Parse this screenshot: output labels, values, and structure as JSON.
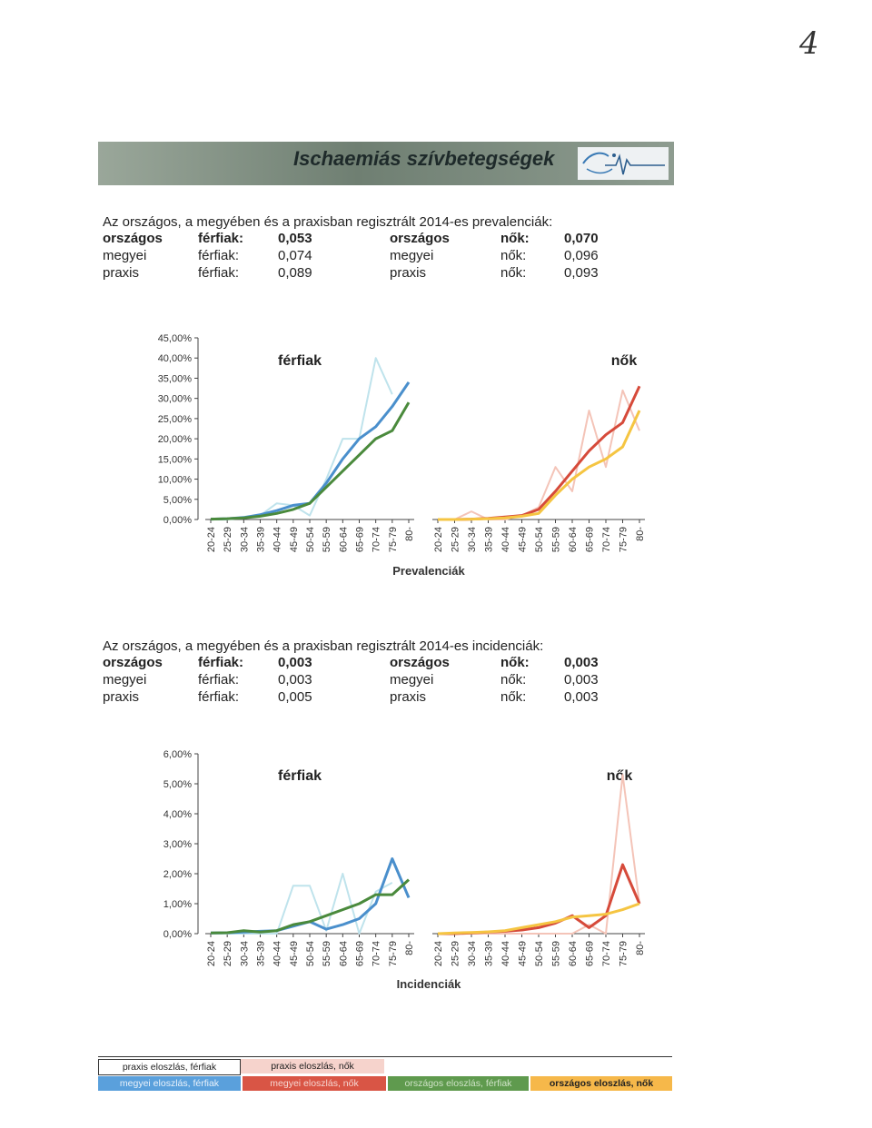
{
  "page_number": "4",
  "header": {
    "title": "Ischaemiás szívbetegségek",
    "logo_icon": "heart-pulse-logo-icon"
  },
  "prevalence": {
    "intro": "Az országos, a megyében és a praxisban regisztrált 2014-es prevalenciák:",
    "rows": [
      {
        "level": "országos",
        "men_label": "férfiak:",
        "men_value": "0,053",
        "level2": "országos",
        "women_label": "nők:",
        "women_value": "0,070",
        "bold": true
      },
      {
        "level": "megyei",
        "men_label": "férfiak:",
        "men_value": "0,074",
        "level2": "megyei",
        "women_label": "nők:",
        "women_value": "0,096",
        "bold": false
      },
      {
        "level": "praxis",
        "men_label": "férfiak:",
        "men_value": "0,089",
        "level2": "praxis",
        "women_label": "nők:",
        "women_value": "0,093",
        "bold": false
      }
    ]
  },
  "incidence": {
    "intro": "Az országos, a megyében és a praxisban regisztrált 2014-es incidenciák:",
    "rows": [
      {
        "level": "országos",
        "men_label": "férfiak:",
        "men_value": "0,003",
        "level2": "országos",
        "women_label": "nők:",
        "women_value": "0,003",
        "bold": true
      },
      {
        "level": "megyei",
        "men_label": "férfiak:",
        "men_value": "0,003",
        "level2": "megyei",
        "women_label": "nők:",
        "women_value": "0,003",
        "bold": false
      },
      {
        "level": "praxis",
        "men_label": "férfiak:",
        "men_value": "0,005",
        "level2": "praxis",
        "women_label": "nők:",
        "women_value": "0,003",
        "bold": false
      }
    ]
  },
  "chart_data": [
    {
      "type": "line",
      "title": "Prevalenciák",
      "panel_labels": [
        "férfiak",
        "nők"
      ],
      "categories": [
        "20-24",
        "25-29",
        "30-34",
        "35-39",
        "40-44",
        "45-49",
        "50-54",
        "55-59",
        "60-64",
        "65-69",
        "70-74",
        "75-79",
        "80-"
      ],
      "ylim": [
        0,
        45
      ],
      "yticks": [
        "0,00%",
        "5,00%",
        "10,00%",
        "15,00%",
        "20,00%",
        "25,00%",
        "30,00%",
        "35,00%",
        "40,00%",
        "45,00%"
      ],
      "panels": [
        {
          "name": "férfiak",
          "series": [
            {
              "name": "praxis eloszlás, férfiak",
              "color": "#bfe3ec",
              "values": [
                0,
                0,
                0.5,
                1,
                4,
                3.5,
                1,
                10,
                20,
                20,
                40,
                31,
                null
              ]
            },
            {
              "name": "megyei eloszlás, férfiak",
              "color": "#4a8fcc",
              "values": [
                0.1,
                0.2,
                0.5,
                1.2,
                2.2,
                3.5,
                4,
                9,
                15,
                20,
                23,
                28,
                34
              ]
            },
            {
              "name": "országos eloszlás, férfiak",
              "color": "#4a8a3c",
              "values": [
                0.1,
                0.2,
                0.4,
                0.8,
                1.5,
                2.5,
                4,
                8,
                12,
                16,
                20,
                22,
                29
              ]
            }
          ]
        },
        {
          "name": "nők",
          "series": [
            {
              "name": "praxis eloszlás, nők",
              "color": "#f4c4b8",
              "values": [
                0,
                0,
                2,
                0,
                0,
                1,
                3,
                13,
                7,
                27,
                13,
                32,
                22
              ]
            },
            {
              "name": "megyei eloszlás, nők",
              "color": "#d64a3a",
              "values": [
                0,
                0,
                0.1,
                0.3,
                0.6,
                1,
                2.5,
                7,
                12,
                17,
                21,
                24,
                33
              ]
            },
            {
              "name": "országos eloszlás, nők",
              "color": "#f5c542",
              "values": [
                0,
                0,
                0.1,
                0.2,
                0.4,
                0.8,
                1.5,
                6,
                10,
                13,
                15,
                18,
                27
              ]
            }
          ]
        }
      ]
    },
    {
      "type": "line",
      "title": "Incidenciák",
      "panel_labels": [
        "férfiak",
        "nők"
      ],
      "categories": [
        "20-24",
        "25-29",
        "30-34",
        "35-39",
        "40-44",
        "45-49",
        "50-54",
        "55-59",
        "60-64",
        "65-69",
        "70-74",
        "75-79",
        "80-"
      ],
      "ylim": [
        0,
        6
      ],
      "yticks": [
        "0,00%",
        "1,00%",
        "2,00%",
        "3,00%",
        "4,00%",
        "5,00%",
        "6,00%"
      ],
      "panels": [
        {
          "name": "férfiak",
          "series": [
            {
              "name": "praxis eloszlás, férfiak",
              "color": "#bfe3ec",
              "values": [
                0,
                0,
                0,
                0,
                0,
                1.6,
                1.6,
                0.1,
                2,
                0,
                1.4,
                1.7,
                null
              ]
            },
            {
              "name": "megyei eloszlás, férfiak",
              "color": "#4a8fcc",
              "values": [
                0.02,
                0.03,
                0.05,
                0.08,
                0.1,
                0.25,
                0.4,
                0.15,
                0.3,
                0.5,
                1,
                2.5,
                1.2
              ]
            },
            {
              "name": "országos eloszlás, férfiak",
              "color": "#4a8a3c",
              "values": [
                0.02,
                0.03,
                0.1,
                0.05,
                0.1,
                0.3,
                0.4,
                0.6,
                0.8,
                1,
                1.3,
                1.3,
                1.8
              ]
            }
          ]
        },
        {
          "name": "nők",
          "series": [
            {
              "name": "praxis eloszlás, nők",
              "color": "#f4c4b8",
              "values": [
                0,
                0,
                0,
                0,
                0,
                0,
                0,
                0,
                0,
                0.3,
                0,
                5.3,
                1
              ]
            },
            {
              "name": "megyei eloszlás, nők",
              "color": "#d64a3a",
              "values": [
                0,
                0,
                0.02,
                0.05,
                0.08,
                0.12,
                0.2,
                0.35,
                0.6,
                0.2,
                0.6,
                2.3,
                1
              ]
            },
            {
              "name": "országos eloszlás, nők",
              "color": "#f5c542",
              "values": [
                0,
                0.02,
                0.04,
                0.06,
                0.1,
                0.2,
                0.3,
                0.4,
                0.55,
                0.6,
                0.65,
                0.8,
                1
              ]
            }
          ]
        }
      ]
    }
  ],
  "legend": {
    "items": [
      {
        "label": "praxis eloszlás, férfiak",
        "color": "#ffffff",
        "text_color": "#222222"
      },
      {
        "label": "praxis eloszlás, nők",
        "color": "#f6d3cc",
        "text_color": "#222222"
      },
      {
        "label": "megyei eloszlás, férfiak",
        "color": "#5aa0dc",
        "text_color": "#eaf2fb"
      },
      {
        "label": "megyei eloszlás, nők",
        "color": "#d95545",
        "text_color": "#f6d7d2"
      },
      {
        "label": "országos eloszlás, férfiak",
        "color": "#5f9a4e",
        "text_color": "#cfe3c7"
      },
      {
        "label": "országos eloszlás, nők",
        "color": "#f6b84a",
        "text_color": "#222222"
      }
    ]
  }
}
